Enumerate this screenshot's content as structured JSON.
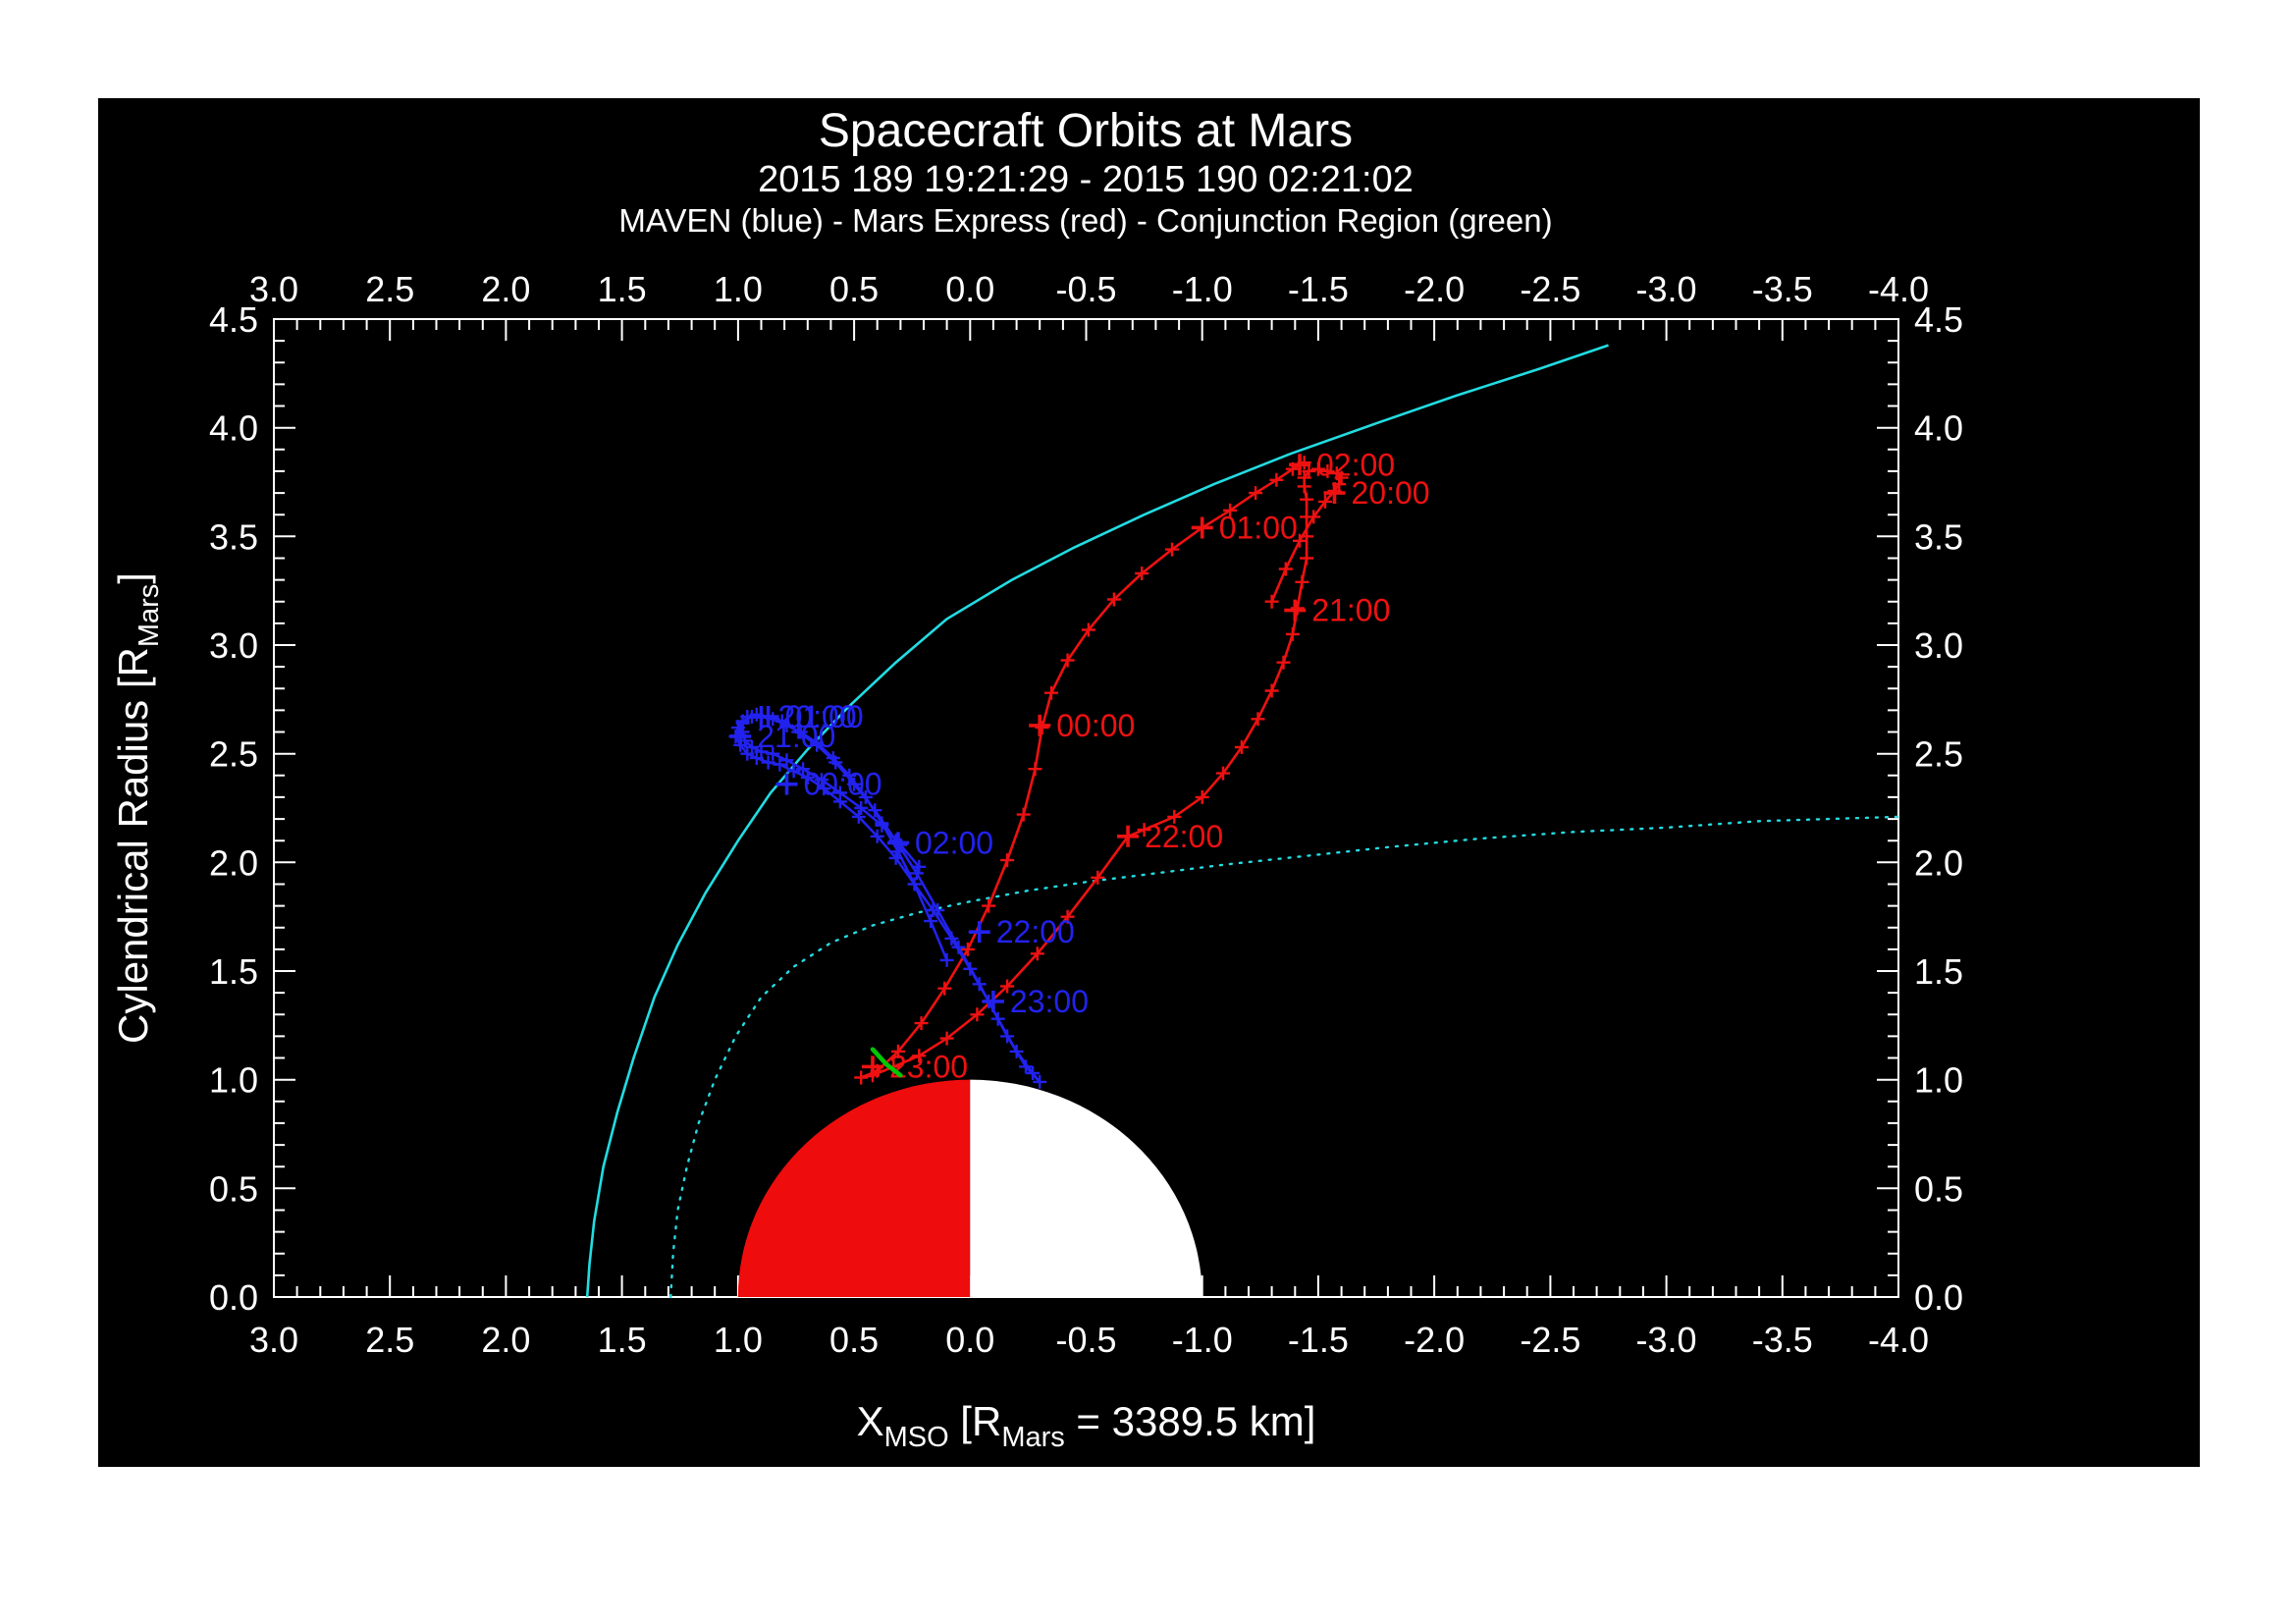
{
  "title": "Spacecraft Orbits at Mars",
  "subtitle": "2015 189 19:21:29 - 2015 190 02:21:02",
  "legend_line": "MAVEN (blue) - Mars Express (red) - Conjunction Region (green)",
  "chart_data": {
    "type": "line",
    "title": "Spacecraft Orbits at Mars",
    "time_range": "2015 189 19:21:29 - 2015 190 02:21:02",
    "grid": false,
    "background": "#000000",
    "frame_color": "#ffffff",
    "colors": {
      "maven": "#2222ee",
      "mars_express": "#ee1111",
      "boundary": "#22dce2",
      "conjunction": "#00c800",
      "text": "#ffffff"
    },
    "x_axis": {
      "label_parts": [
        {
          "t": "X"
        },
        {
          "t": "MSO",
          "sub": true
        },
        {
          "t": " [R"
        },
        {
          "t": "Mars",
          "sub": true
        },
        {
          "t": " = 3389.5 km]"
        }
      ],
      "left_value": 3.0,
      "right_value": -4.0,
      "ticks": [
        {
          "v": 3.0,
          "label": "3.0"
        },
        {
          "v": 2.5,
          "label": "2.5"
        },
        {
          "v": 2.0,
          "label": "2.0"
        },
        {
          "v": 1.5,
          "label": "1.5"
        },
        {
          "v": 1.0,
          "label": "1.0"
        },
        {
          "v": 0.5,
          "label": "0.5"
        },
        {
          "v": 0.0,
          "label": "0.0"
        },
        {
          "v": -0.5,
          "label": "-0.5"
        },
        {
          "v": -1.0,
          "label": "-1.0"
        },
        {
          "v": -1.5,
          "label": "-1.5"
        },
        {
          "v": -2.0,
          "label": "-2.0"
        },
        {
          "v": -2.5,
          "label": "-2.5"
        },
        {
          "v": -3.0,
          "label": "-3.0"
        },
        {
          "v": -3.5,
          "label": "-3.5"
        },
        {
          "v": -4.0,
          "label": "-4.0"
        }
      ],
      "minor_step": 0.1
    },
    "y_axis": {
      "label_parts": [
        {
          "t": "Cylendrical Radius [R"
        },
        {
          "t": "Mars",
          "sub": true
        },
        {
          "t": "]"
        }
      ],
      "min": 0.0,
      "max": 4.5,
      "ticks": [
        {
          "v": 0.0,
          "label": "0.0"
        },
        {
          "v": 0.5,
          "label": "0.5"
        },
        {
          "v": 1.0,
          "label": "1.0"
        },
        {
          "v": 1.5,
          "label": "1.5"
        },
        {
          "v": 2.0,
          "label": "2.0"
        },
        {
          "v": 2.5,
          "label": "2.5"
        },
        {
          "v": 3.0,
          "label": "3.0"
        },
        {
          "v": 3.5,
          "label": "3.5"
        },
        {
          "v": 4.0,
          "label": "4.0"
        },
        {
          "v": 4.5,
          "label": "4.5"
        }
      ],
      "minor_step": 0.1
    },
    "mars": {
      "radius": 1.0,
      "dayside_color": "#ee0c0c",
      "nightside_color": "#ffffff"
    },
    "bow_shock": {
      "name": "bow-shock",
      "style": "solid",
      "points": [
        [
          1.65,
          0.0
        ],
        [
          1.64,
          0.15
        ],
        [
          1.62,
          0.35
        ],
        [
          1.58,
          0.6
        ],
        [
          1.52,
          0.85
        ],
        [
          1.45,
          1.1
        ],
        [
          1.36,
          1.38
        ],
        [
          1.26,
          1.62
        ],
        [
          1.14,
          1.86
        ],
        [
          1.0,
          2.1
        ],
        [
          0.86,
          2.32
        ],
        [
          0.7,
          2.52
        ],
        [
          0.52,
          2.72
        ],
        [
          0.32,
          2.92
        ],
        [
          0.1,
          3.12
        ],
        [
          -0.18,
          3.3
        ],
        [
          -0.45,
          3.45
        ],
        [
          -0.75,
          3.6
        ],
        [
          -1.05,
          3.74
        ],
        [
          -1.38,
          3.88
        ],
        [
          -1.75,
          4.02
        ],
        [
          -2.1,
          4.15
        ],
        [
          -2.45,
          4.27
        ],
        [
          -2.75,
          4.38
        ]
      ]
    },
    "mpb": {
      "name": "magnetic-pileup-boundary",
      "style": "dotted",
      "points": [
        [
          1.29,
          0.0
        ],
        [
          1.28,
          0.2
        ],
        [
          1.26,
          0.4
        ],
        [
          1.22,
          0.6
        ],
        [
          1.17,
          0.8
        ],
        [
          1.1,
          1.0
        ],
        [
          1.01,
          1.2
        ],
        [
          0.9,
          1.38
        ],
        [
          0.76,
          1.52
        ],
        [
          0.6,
          1.63
        ],
        [
          0.42,
          1.71
        ],
        [
          0.22,
          1.77
        ],
        [
          0.0,
          1.82
        ],
        [
          -0.25,
          1.87
        ],
        [
          -0.5,
          1.91
        ],
        [
          -0.8,
          1.95
        ],
        [
          -1.1,
          1.99
        ],
        [
          -1.45,
          2.03
        ],
        [
          -1.8,
          2.07
        ],
        [
          -2.2,
          2.11
        ],
        [
          -2.6,
          2.14
        ],
        [
          -3.0,
          2.16
        ],
        [
          -3.4,
          2.19
        ],
        [
          -3.7,
          2.2
        ],
        [
          -4.0,
          2.21
        ]
      ]
    },
    "orbits": [
      {
        "name": "Mars Express",
        "key": "mars-express",
        "color": "#ee1111",
        "points": [
          [
            -1.3,
            3.2
          ],
          [
            -1.36,
            3.35
          ],
          [
            -1.42,
            3.48
          ],
          [
            -1.48,
            3.59
          ],
          [
            -1.53,
            3.66
          ],
          [
            -1.57,
            3.71
          ],
          [
            -1.59,
            3.74
          ],
          [
            -1.6,
            3.77
          ],
          [
            -1.58,
            3.79
          ],
          [
            -1.54,
            3.8
          ],
          [
            -1.5,
            3.81
          ],
          [
            -1.46,
            3.8
          ],
          [
            -1.44,
            3.77
          ],
          [
            -1.44,
            3.73
          ],
          [
            -1.45,
            3.67
          ],
          [
            -1.45,
            3.59
          ],
          [
            -1.45,
            3.5
          ],
          [
            -1.45,
            3.4
          ],
          [
            -1.43,
            3.29
          ],
          [
            -1.41,
            3.17
          ],
          [
            -1.39,
            3.05
          ],
          [
            -1.35,
            2.92
          ],
          [
            -1.3,
            2.79
          ],
          [
            -1.24,
            2.66
          ],
          [
            -1.17,
            2.53
          ],
          [
            -1.09,
            2.41
          ],
          [
            -1.0,
            2.3
          ],
          [
            -0.88,
            2.21
          ],
          [
            -0.75,
            2.15
          ],
          [
            -0.68,
            2.12
          ],
          [
            -0.55,
            1.93
          ],
          [
            -0.42,
            1.75
          ],
          [
            -0.29,
            1.58
          ],
          [
            -0.16,
            1.43
          ],
          [
            -0.03,
            1.3
          ],
          [
            0.1,
            1.19
          ],
          [
            0.22,
            1.11
          ],
          [
            0.33,
            1.06
          ],
          [
            0.42,
            1.02
          ],
          [
            0.47,
            1.01
          ],
          [
            0.4,
            1.04
          ],
          [
            0.31,
            1.13
          ],
          [
            0.21,
            1.26
          ],
          [
            0.11,
            1.42
          ],
          [
            0.01,
            1.6
          ],
          [
            -0.08,
            1.8
          ],
          [
            -0.16,
            2.01
          ],
          [
            -0.23,
            2.22
          ],
          [
            -0.28,
            2.43
          ],
          [
            -0.31,
            2.62
          ],
          [
            -0.35,
            2.78
          ],
          [
            -0.42,
            2.93
          ],
          [
            -0.51,
            3.07
          ],
          [
            -0.62,
            3.21
          ],
          [
            -0.74,
            3.33
          ],
          [
            -0.87,
            3.44
          ],
          [
            -1.0,
            3.54
          ],
          [
            -1.12,
            3.62
          ],
          [
            -1.23,
            3.7
          ],
          [
            -1.32,
            3.76
          ],
          [
            -1.39,
            3.81
          ],
          [
            -1.42,
            3.83
          ],
          [
            -1.44,
            3.84
          ]
        ],
        "hour_marks": [
          {
            "label": "20:00",
            "x": -1.57,
            "y": 3.7
          },
          {
            "label": "21:00",
            "x": -1.4,
            "y": 3.16
          },
          {
            "label": "22:00",
            "x": -0.68,
            "y": 2.12
          },
          {
            "label": "23:00",
            "x": 0.42,
            "y": 1.06
          },
          {
            "label": "00:00",
            "x": -0.3,
            "y": 2.63
          },
          {
            "label": "01:00",
            "x": -1.0,
            "y": 3.54
          },
          {
            "label": "02:00",
            "x": -1.42,
            "y": 3.83
          }
        ]
      },
      {
        "name": "MAVEN",
        "key": "maven",
        "color": "#2222ee",
        "points": [
          [
            0.1,
            1.55
          ],
          [
            0.17,
            1.73
          ],
          [
            0.24,
            1.9
          ],
          [
            0.31,
            2.05
          ],
          [
            0.38,
            2.18
          ],
          [
            0.45,
            2.3
          ],
          [
            0.52,
            2.4
          ],
          [
            0.59,
            2.48
          ],
          [
            0.66,
            2.55
          ],
          [
            0.73,
            2.6
          ],
          [
            0.79,
            2.63
          ],
          [
            0.85,
            2.66
          ],
          [
            0.9,
            2.67
          ],
          [
            0.94,
            2.67
          ],
          [
            0.98,
            2.65
          ],
          [
            1.0,
            2.62
          ],
          [
            1.01,
            2.58
          ],
          [
            0.99,
            2.54
          ],
          [
            0.96,
            2.5
          ],
          [
            0.92,
            2.48
          ],
          [
            0.87,
            2.46
          ],
          [
            0.82,
            2.45
          ],
          [
            0.76,
            2.42
          ],
          [
            0.7,
            2.39
          ],
          [
            0.63,
            2.34
          ],
          [
            0.56,
            2.28
          ],
          [
            0.48,
            2.21
          ],
          [
            0.4,
            2.12
          ],
          [
            0.32,
            2.02
          ],
          [
            0.24,
            1.9
          ],
          [
            0.16,
            1.78
          ],
          [
            0.08,
            1.65
          ],
          [
            0.0,
            1.51
          ],
          [
            -0.08,
            1.36
          ],
          [
            -0.16,
            1.2
          ],
          [
            -0.24,
            1.06
          ],
          [
            -0.3,
            0.99
          ],
          [
            -0.27,
            1.03
          ],
          [
            -0.2,
            1.13
          ],
          [
            -0.12,
            1.28
          ],
          [
            -0.04,
            1.44
          ],
          [
            0.05,
            1.61
          ],
          [
            0.14,
            1.78
          ],
          [
            0.23,
            1.95
          ],
          [
            0.32,
            2.1
          ],
          [
            0.41,
            2.24
          ],
          [
            0.5,
            2.36
          ],
          [
            0.58,
            2.46
          ],
          [
            0.66,
            2.54
          ],
          [
            0.74,
            2.6
          ],
          [
            0.81,
            2.65
          ],
          [
            0.87,
            2.67
          ],
          [
            0.92,
            2.68
          ],
          [
            0.96,
            2.67
          ],
          [
            0.98,
            2.64
          ],
          [
            0.98,
            2.6
          ],
          [
            0.97,
            2.56
          ],
          [
            0.94,
            2.53
          ],
          [
            0.9,
            2.51
          ],
          [
            0.85,
            2.5
          ],
          [
            0.79,
            2.47
          ],
          [
            0.72,
            2.43
          ],
          [
            0.64,
            2.38
          ],
          [
            0.56,
            2.32
          ],
          [
            0.47,
            2.25
          ],
          [
            0.38,
            2.17
          ],
          [
            0.3,
            2.08
          ],
          [
            0.22,
            1.98
          ]
        ],
        "hour_marks": [
          {
            "label": "20:00",
            "x": 0.9,
            "y": 2.67
          },
          {
            "label": "21:00",
            "x": 0.99,
            "y": 2.58
          },
          {
            "label": "22:00",
            "x": -0.04,
            "y": 1.68
          },
          {
            "label": "23:00",
            "x": -0.1,
            "y": 1.36
          },
          {
            "label": "00:00",
            "x": 0.79,
            "y": 2.36
          },
          {
            "label": "01:00",
            "x": 0.87,
            "y": 2.67
          },
          {
            "label": "02:00",
            "x": 0.31,
            "y": 2.09
          }
        ]
      }
    ],
    "conjunction": {
      "name": "conjunction-region",
      "points": [
        [
          0.3,
          1.02
        ],
        [
          0.36,
          1.07
        ],
        [
          0.42,
          1.14
        ]
      ]
    }
  }
}
